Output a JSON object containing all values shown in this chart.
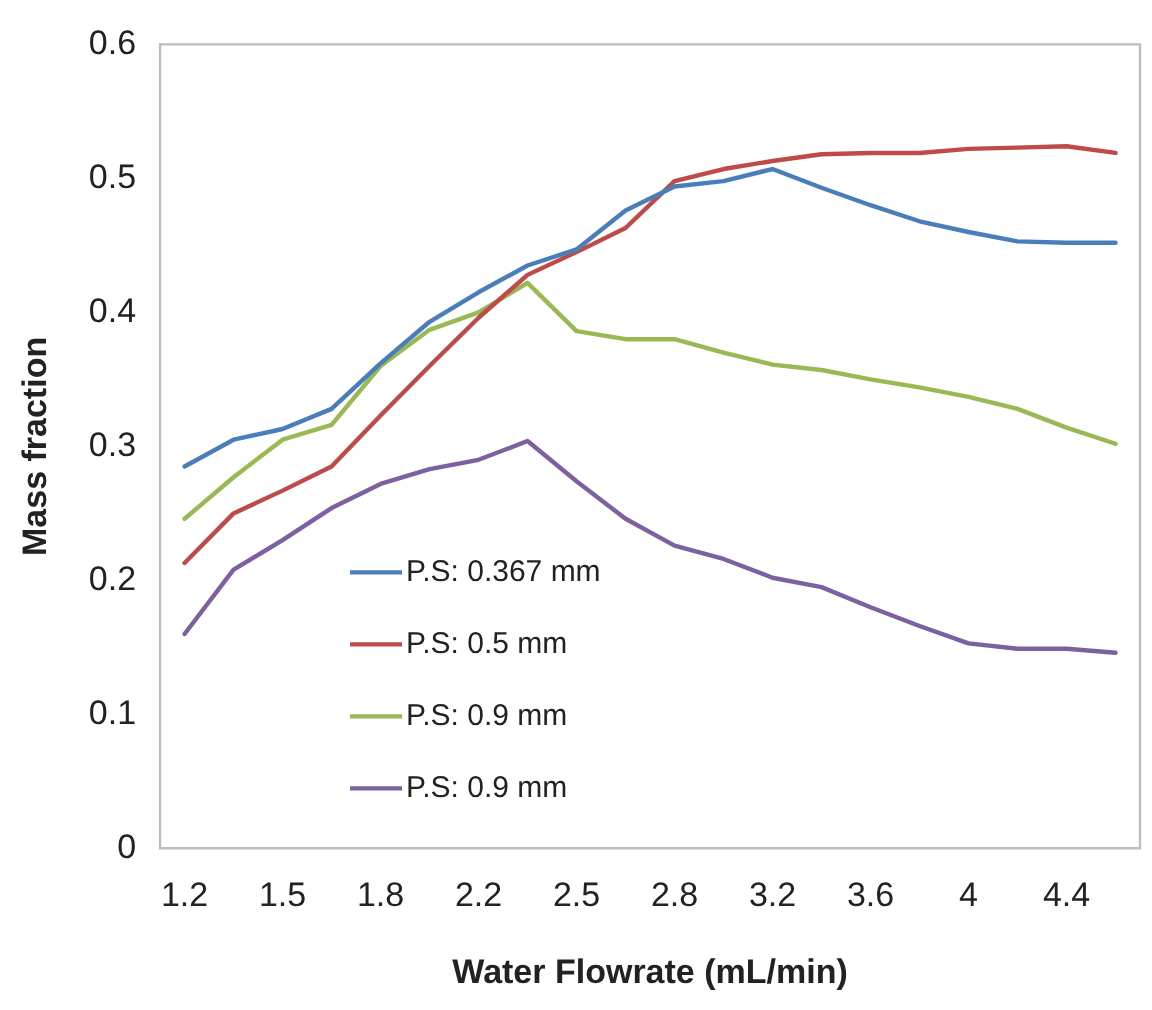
{
  "chart_data": {
    "type": "line",
    "xlabel": "Water Flowrate (mL/min)",
    "ylabel": "Mass fraction",
    "categories": [
      "1.2",
      null,
      "1.5",
      null,
      "1.8",
      null,
      "2.2",
      null,
      "2.5",
      null,
      "2.8",
      null,
      "3.2",
      null,
      "3.6",
      null,
      "4",
      null,
      "4.4",
      null
    ],
    "series": [
      {
        "name": "P.S: 0.367 mm",
        "color": "#4a7ebb",
        "values": [
          0.285,
          0.305,
          0.313,
          0.328,
          0.362,
          0.393,
          0.415,
          0.435,
          0.447,
          0.476,
          0.494,
          0.498,
          0.507,
          0.493,
          0.48,
          0.468,
          0.46,
          0.453,
          0.452,
          0.452
        ]
      },
      {
        "name": "P.S: 0.5 mm",
        "color": "#be4b48",
        "values": [
          0.213,
          0.25,
          0.267,
          0.285,
          0.323,
          0.36,
          0.396,
          0.428,
          0.445,
          0.463,
          0.498,
          0.507,
          0.513,
          0.518,
          0.519,
          0.519,
          0.522,
          0.523,
          0.524,
          0.519
        ]
      },
      {
        "name": "P.S: 0.9 mm",
        "color": "#98b954",
        "values": [
          0.246,
          0.277,
          0.305,
          0.316,
          0.36,
          0.387,
          0.4,
          0.422,
          0.386,
          0.38,
          0.38,
          0.37,
          0.361,
          0.357,
          0.35,
          0.344,
          0.337,
          0.328,
          0.314,
          0.302
        ]
      },
      {
        "name": "P.S: 0.9 mm",
        "color": "#7d60a0",
        "values": [
          0.16,
          0.208,
          0.23,
          0.254,
          0.272,
          0.283,
          0.29,
          0.304,
          0.274,
          0.246,
          0.226,
          0.216,
          0.202,
          0.195,
          0.18,
          0.166,
          0.153,
          0.149,
          0.149,
          0.146
        ]
      }
    ],
    "ylim": [
      0,
      0.6
    ],
    "yticks": [
      0,
      0.1,
      0.2,
      0.3,
      0.4,
      0.5,
      0.6
    ],
    "grid": false,
    "legend": "bottom left",
    "marker": "none",
    "line_style": "solid"
  }
}
